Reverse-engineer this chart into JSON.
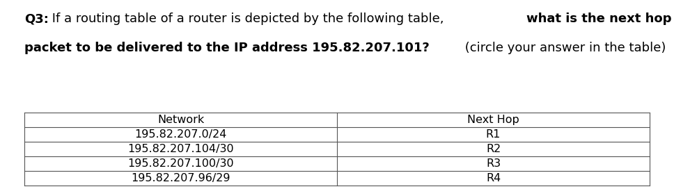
{
  "headers": [
    "Network",
    "Next Hop"
  ],
  "rows": [
    [
      "195.82.207.0/24",
      "R1"
    ],
    [
      "195.82.207.104/30",
      "R2"
    ],
    [
      "195.82.207.100/30",
      "R3"
    ],
    [
      "195.82.207.96/29",
      "R4"
    ]
  ],
  "background_color": "#ffffff",
  "text_color": "#000000",
  "line_color": "#555555",
  "title_fontsize": 13.0,
  "table_fontsize": 11.5,
  "fig_width": 9.68,
  "fig_height": 2.72
}
